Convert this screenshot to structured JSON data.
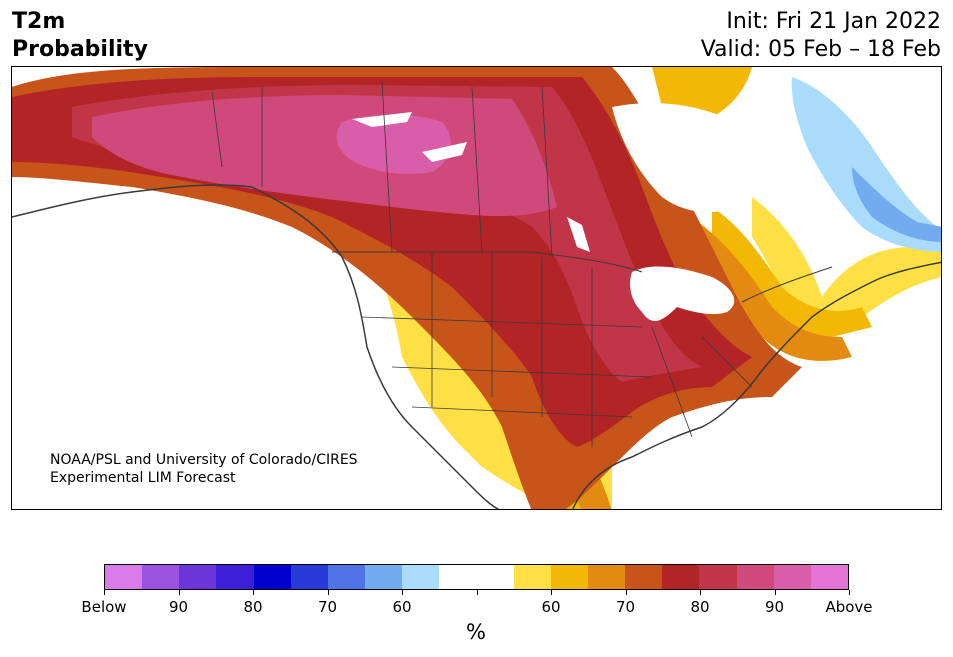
{
  "title": {
    "variable": "T2m",
    "kind": "Probability"
  },
  "dates": {
    "init": "Init: Fri 21 Jan 2022",
    "valid": "Valid: 05 Feb – 18 Feb"
  },
  "credit": {
    "line1": "NOAA/PSL and University of Colorado/CIRES",
    "line2": "Experimental LIM Forecast"
  },
  "legend": {
    "unit": "%",
    "labels": [
      "Below",
      "90",
      "80",
      "70",
      "60",
      "60",
      "70",
      "80",
      "90",
      "Above"
    ],
    "below_colors": [
      "#d97be9",
      "#9c52e0",
      "#6a36d8",
      "#3b1fd6",
      "#0000cd",
      "#2a3ad8",
      "#4d73e6",
      "#73abf0",
      "#a9dbfb"
    ],
    "neutral_color": "#ffffff",
    "above_colors": [
      "#ffe044",
      "#f3b805",
      "#e28b10",
      "#c75418",
      "#b22426",
      "#c23549",
      "#cf4a7a",
      "#d95da8",
      "#e473d6"
    ]
  },
  "map": {
    "colors": {
      "land_outline": "#3a3a3a",
      "above_60": "#ffe044",
      "above_70": "#f3b805",
      "above_80": "#e28b10",
      "above_90": "#c75418",
      "above_95": "#b22426",
      "hot_1": "#c23549",
      "hot_2": "#cf4a7a",
      "hot_3": "#d95da8",
      "below_60": "#a9dbfb",
      "below_70": "#73abf0"
    }
  }
}
